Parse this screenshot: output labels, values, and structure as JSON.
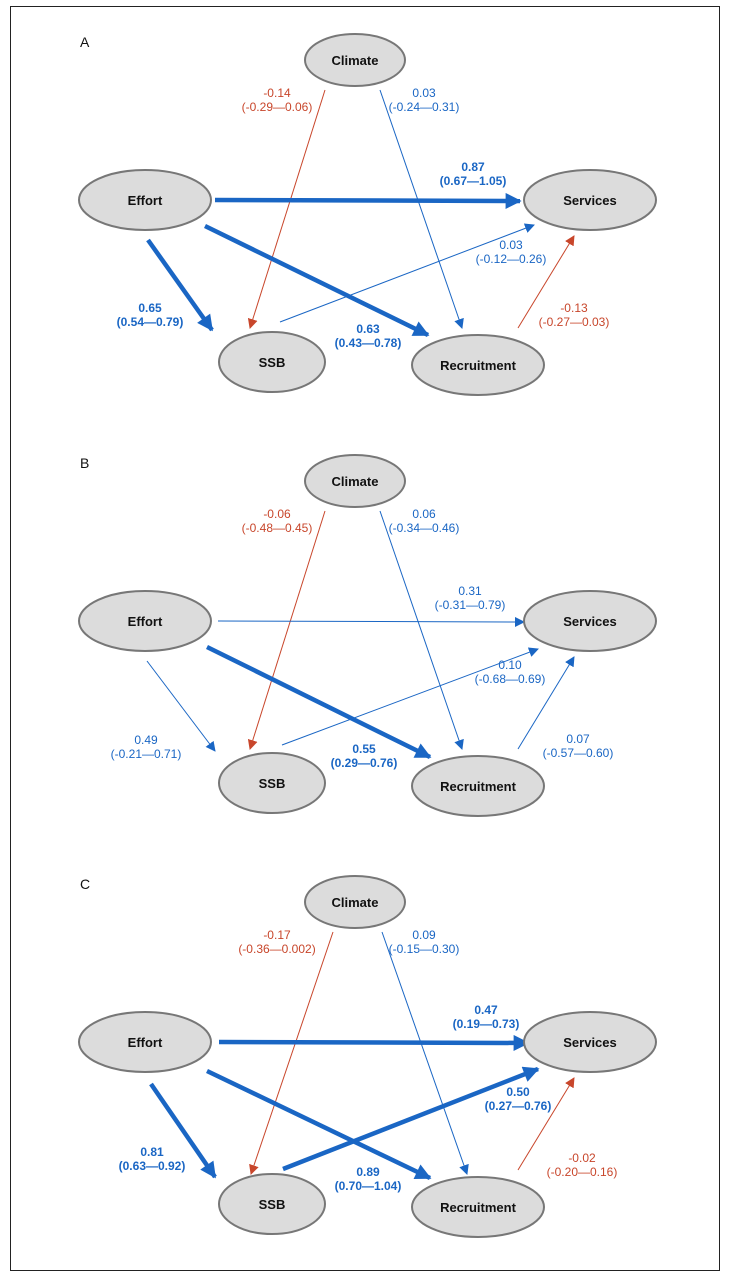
{
  "colors": {
    "positive": "#1a66c4",
    "negative": "#c8462b",
    "node_fill": "#dcdcdc",
    "node_stroke": "#777777"
  },
  "nodes": {
    "climate": "Climate",
    "effort": "Effort",
    "services": "Services",
    "ssb": "SSB",
    "recruitment": "Recruitment"
  },
  "panels": [
    {
      "letter": "A",
      "paths": {
        "climate_ssb": {
          "value": "-0.14",
          "ci": "(-0.29—0.06)",
          "sign": "negative",
          "bold": false,
          "weight": 1
        },
        "climate_recruitment": {
          "value": "0.03",
          "ci": "(-0.24—0.31)",
          "sign": "positive",
          "bold": false,
          "weight": 1
        },
        "effort_services": {
          "value": "0.87",
          "ci": "(0.67—1.05)",
          "sign": "positive",
          "bold": true,
          "weight": 5
        },
        "ssb_services": {
          "value": "0.03",
          "ci": "(-0.12—0.26)",
          "sign": "positive",
          "bold": false,
          "weight": 1
        },
        "effort_ssb": {
          "value": "0.65",
          "ci": "(0.54—0.79)",
          "sign": "positive",
          "bold": true,
          "weight": 5
        },
        "effort_recruitment": {
          "value": "0.63",
          "ci": "(0.43—0.78)",
          "sign": "positive",
          "bold": true,
          "weight": 5
        },
        "recruitment_services": {
          "value": "-0.13",
          "ci": "(-0.27—0.03)",
          "sign": "negative",
          "bold": false,
          "weight": 1
        }
      }
    },
    {
      "letter": "B",
      "paths": {
        "climate_ssb": {
          "value": "-0.06",
          "ci": "(-0.48—0.45)",
          "sign": "negative",
          "bold": false,
          "weight": 1
        },
        "climate_recruitment": {
          "value": "0.06",
          "ci": "(-0.34—0.46)",
          "sign": "positive",
          "bold": false,
          "weight": 1
        },
        "effort_services": {
          "value": "0.31",
          "ci": "(-0.31—0.79)",
          "sign": "positive",
          "bold": false,
          "weight": 1
        },
        "ssb_services": {
          "value": "0.10",
          "ci": "(-0.68—0.69)",
          "sign": "positive",
          "bold": false,
          "weight": 1
        },
        "effort_ssb": {
          "value": "0.49",
          "ci": "(-0.21—0.71)",
          "sign": "positive",
          "bold": false,
          "weight": 1
        },
        "effort_recruitment": {
          "value": "0.55",
          "ci": "(0.29—0.76)",
          "sign": "positive",
          "bold": true,
          "weight": 5
        },
        "recruitment_services": {
          "value": "0.07",
          "ci": "(-0.57—0.60)",
          "sign": "positive",
          "bold": false,
          "weight": 1
        }
      }
    },
    {
      "letter": "C",
      "paths": {
        "climate_ssb": {
          "value": "-0.17",
          "ci": "(-0.36—0.002)",
          "sign": "negative",
          "bold": false,
          "weight": 1
        },
        "climate_recruitment": {
          "value": "0.09",
          "ci": "(-0.15—0.30)",
          "sign": "positive",
          "bold": false,
          "weight": 1
        },
        "effort_services": {
          "value": "0.47",
          "ci": "(0.19—0.73)",
          "sign": "positive",
          "bold": true,
          "weight": 5
        },
        "ssb_services": {
          "value": "0.50",
          "ci": "(0.27—0.76)",
          "sign": "positive",
          "bold": true,
          "weight": 5
        },
        "effort_ssb": {
          "value": "0.81",
          "ci": "(0.63—0.92)",
          "sign": "positive",
          "bold": true,
          "weight": 5
        },
        "effort_recruitment": {
          "value": "0.89",
          "ci": "(0.70—1.04)",
          "sign": "positive",
          "bold": true,
          "weight": 5
        },
        "recruitment_services": {
          "value": "-0.02",
          "ci": "(-0.20—0.16)",
          "sign": "negative",
          "bold": false,
          "weight": 1
        }
      }
    }
  ]
}
